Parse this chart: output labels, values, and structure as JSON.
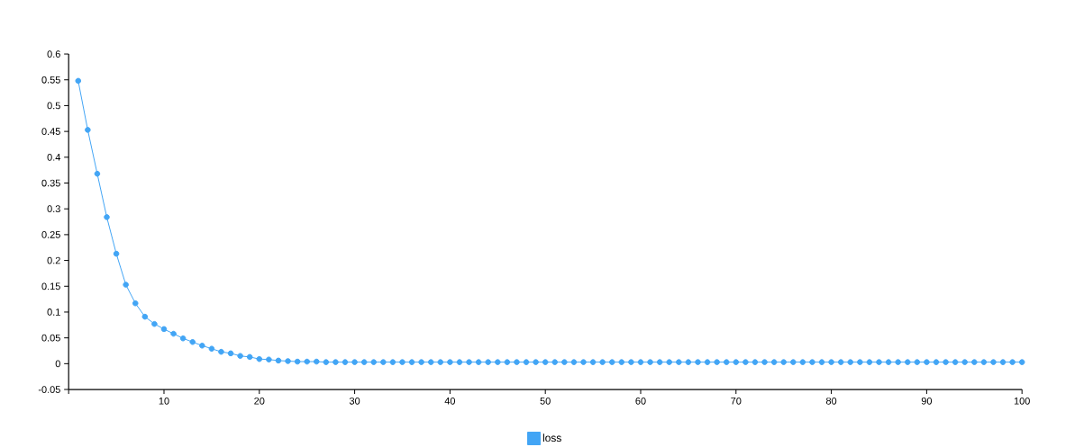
{
  "chart_data": {
    "type": "line",
    "x": [
      1,
      2,
      3,
      4,
      5,
      6,
      7,
      8,
      9,
      10,
      11,
      12,
      13,
      14,
      15,
      16,
      17,
      18,
      19,
      20,
      21,
      22,
      23,
      24,
      25,
      26,
      27,
      28,
      29,
      30,
      31,
      32,
      33,
      34,
      35,
      36,
      37,
      38,
      39,
      40,
      41,
      42,
      43,
      44,
      45,
      46,
      47,
      48,
      49,
      50,
      51,
      52,
      53,
      54,
      55,
      56,
      57,
      58,
      59,
      60,
      61,
      62,
      63,
      64,
      65,
      66,
      67,
      68,
      69,
      70,
      71,
      72,
      73,
      74,
      75,
      76,
      77,
      78,
      79,
      80,
      81,
      82,
      83,
      84,
      85,
      86,
      87,
      88,
      89,
      90,
      91,
      92,
      93,
      94,
      95,
      96,
      97,
      98,
      99,
      100
    ],
    "series": [
      {
        "name": "loss",
        "color": "#42a5f5",
        "values": [
          0.548,
          0.453,
          0.368,
          0.284,
          0.213,
          0.153,
          0.117,
          0.091,
          0.077,
          0.067,
          0.058,
          0.049,
          0.042,
          0.035,
          0.029,
          0.023,
          0.02,
          0.015,
          0.013,
          0.009,
          0.008,
          0.006,
          0.005,
          0.004,
          0.004,
          0.004,
          0.003,
          0.003,
          0.003,
          0.003,
          0.003,
          0.003,
          0.003,
          0.003,
          0.003,
          0.003,
          0.003,
          0.003,
          0.003,
          0.003,
          0.003,
          0.003,
          0.003,
          0.003,
          0.003,
          0.003,
          0.003,
          0.003,
          0.003,
          0.003,
          0.003,
          0.003,
          0.003,
          0.003,
          0.003,
          0.003,
          0.003,
          0.003,
          0.003,
          0.003,
          0.003,
          0.003,
          0.003,
          0.003,
          0.003,
          0.003,
          0.003,
          0.003,
          0.003,
          0.003,
          0.003,
          0.003,
          0.003,
          0.003,
          0.003,
          0.003,
          0.003,
          0.003,
          0.003,
          0.003,
          0.003,
          0.003,
          0.003,
          0.003,
          0.003,
          0.003,
          0.003,
          0.003,
          0.003,
          0.003,
          0.003,
          0.003,
          0.003,
          0.003,
          0.003,
          0.003,
          0.003,
          0.003,
          0.003,
          0.003
        ]
      }
    ],
    "xlim": [
      0,
      100
    ],
    "xticks": [
      {
        "value": 0,
        "label": null
      },
      10,
      20,
      30,
      40,
      50,
      60,
      70,
      80,
      90,
      100
    ],
    "ylim": [
      -0.05,
      0.6
    ],
    "yticks": [
      -0.05,
      0,
      0.05,
      0.1,
      0.15,
      0.2,
      0.25,
      0.3,
      0.35,
      0.4,
      0.45,
      0.5,
      0.55,
      0.6
    ],
    "grid": false,
    "legend": "bottom",
    "marker": "circle",
    "line_style": "solid"
  }
}
